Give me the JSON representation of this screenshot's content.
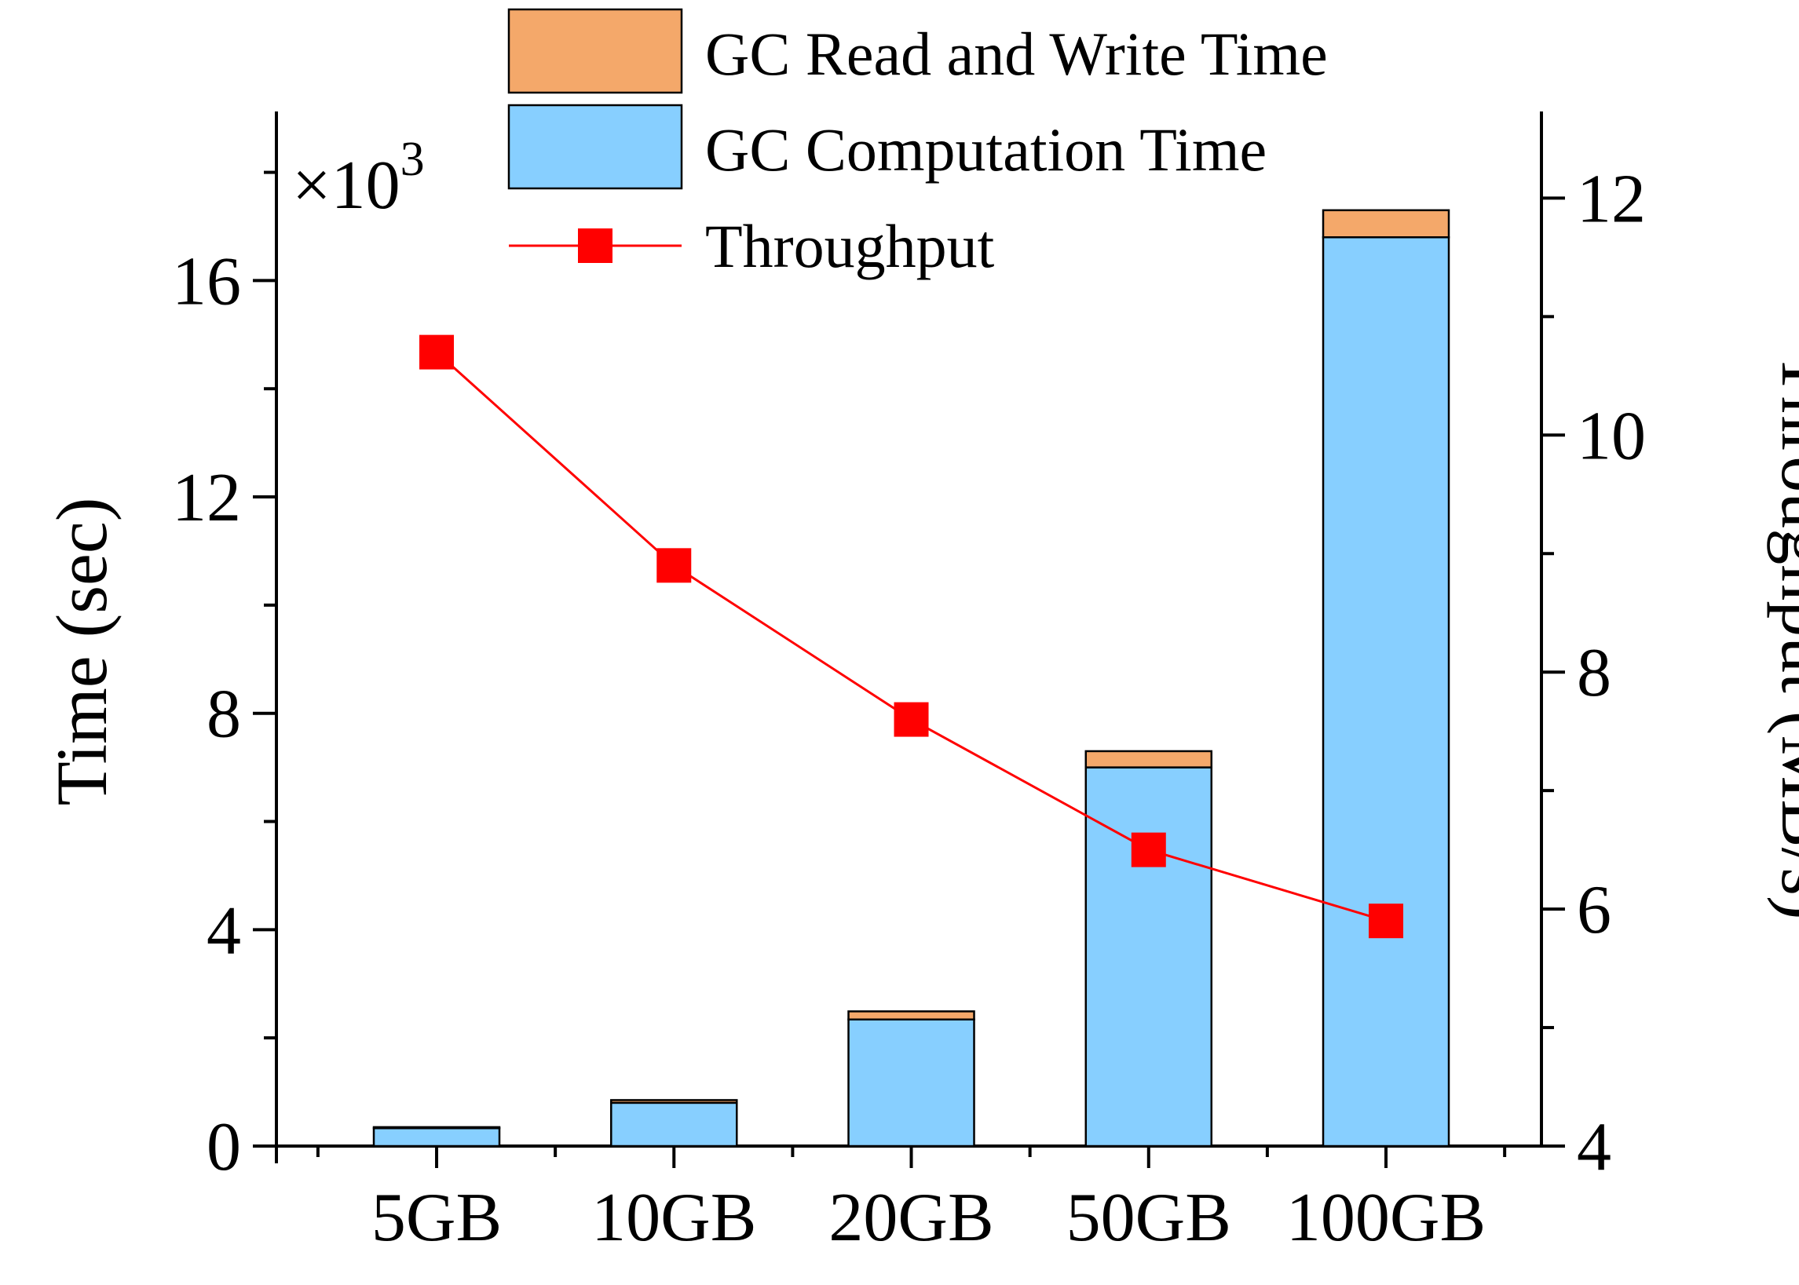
{
  "chart_data": {
    "type": "bar",
    "stacked": true,
    "categories": [
      "5GB",
      "10GB",
      "20GB",
      "50GB",
      "100GB"
    ],
    "series": [
      {
        "name": "GC Computation Time",
        "axis": "left",
        "color": "#87CFFF",
        "values": [
          330,
          800,
          2340,
          7000,
          16800
        ]
      },
      {
        "name": "GC Read and Write Time",
        "axis": "left",
        "color": "#F4A86A",
        "values": [
          20,
          50,
          150,
          300,
          500
        ]
      },
      {
        "name": "Throughput",
        "type": "line",
        "axis": "right",
        "color": "#FF0000",
        "values": [
          10.7,
          8.9,
          7.6,
          6.5,
          5.9
        ]
      }
    ],
    "ylabel": "Time (sec)",
    "ylabel_right": "Throughput (MB/s)",
    "y_multiplier": {
      "prefix": "×10",
      "exponent": "3"
    },
    "ylim": [
      0,
      18400
    ],
    "y2lim": [
      4,
      12.4
    ],
    "yticks": [
      0,
      4000,
      8000,
      12000,
      16000
    ],
    "ytick_labels": [
      "0",
      "4",
      "8",
      "12",
      "16"
    ],
    "y2ticks": [
      4,
      6,
      8,
      10,
      12
    ],
    "y2tick_labels": [
      "4",
      "6",
      "8",
      "10",
      "12"
    ],
    "legend": {
      "position": "top-center",
      "entries": [
        "GC Read and Write Time",
        "GC Computation Time",
        "Throughput"
      ]
    }
  }
}
